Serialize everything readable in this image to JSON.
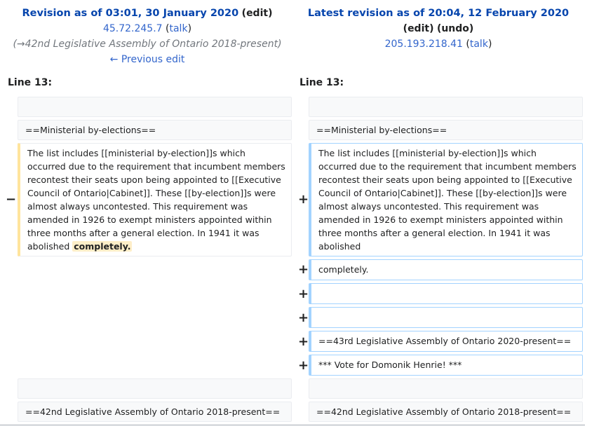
{
  "left_header": {
    "title": "Revision as of 03:01, 30 January 2020",
    "edit": "edit",
    "user": "45.72.245.7",
    "talk": "talk",
    "comment": "(→42nd Legislative Assembly of Ontario 2018-present)",
    "prev_edit": "← Previous edit"
  },
  "right_header": {
    "title": "Latest revision as of 20:04, 12 February 2020",
    "edit": "edit",
    "undo": "undo",
    "user": "205.193.218.41",
    "talk": "talk"
  },
  "line_label": "Line 13:",
  "markers": {
    "minus": "−",
    "plus": "+"
  },
  "left": {
    "heading1": "==Ministerial by-elections==",
    "paragraph": "The list includes [[ministerial by-election]]s which occurred due to the requirement that incumbent members recontest their seats upon being appointed to [[Executive Council of Ontario|Cabinet]]. These [[by-election]]s were almost always uncontested. This requirement was amended in 1926 to exempt ministers appointed within three months after a general election. In 1941 it was abolished",
    "removed_word": "completely.",
    "heading2": "==42nd Legislative Assembly of Ontario 2018-present=="
  },
  "right": {
    "heading1": "==Ministerial by-elections==",
    "paragraph": "The list includes [[ministerial by-election]]s which occurred due to the requirement that incumbent members recontest their seats upon being appointed to [[Executive Council of Ontario|Cabinet]]. These [[by-election]]s were almost always uncontested. This requirement was amended in 1926 to exempt ministers appointed within three months after a general election. In 1941 it was abolished",
    "added_line1": "completely.",
    "added_line2": "==43rd Legislative Assembly of Ontario 2020-present==",
    "added_line3": "*** Vote for Domonik Henrie! ***",
    "heading2": "==42nd Legislative Assembly of Ontario 2018-present=="
  }
}
